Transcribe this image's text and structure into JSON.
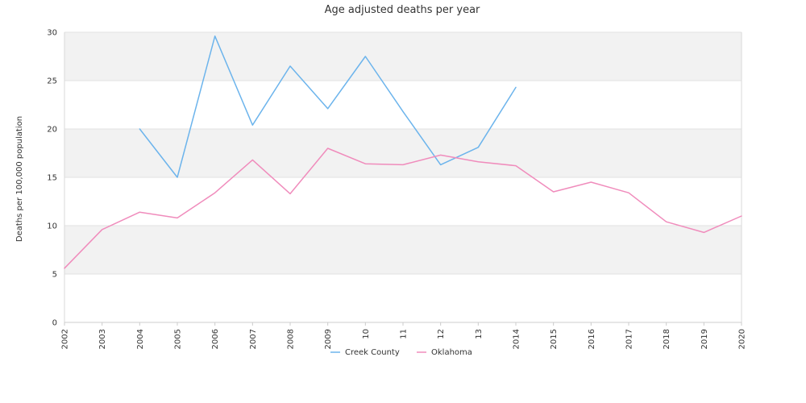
{
  "chart_data": {
    "type": "line",
    "title": "Age adjusted deaths per year",
    "ylabel": "Deaths per 100,000 population",
    "xlabel": "",
    "ylim": [
      0,
      30
    ],
    "yticks": [
      0,
      5,
      10,
      15,
      20,
      25,
      30
    ],
    "x": [
      "2002",
      "2003",
      "2004",
      "2005",
      "2006",
      "2007",
      "2008",
      "2009",
      "2010",
      "2011",
      "2012",
      "2013",
      "2014",
      "2015",
      "2016",
      "2017",
      "2018",
      "2019",
      "2020"
    ],
    "x_tick_labels": [
      "2002",
      "2003",
      "2004",
      "2005",
      "2006",
      "2007",
      "2008",
      "2009",
      "10",
      "11",
      "12",
      "13",
      "2014",
      "2015",
      "2016",
      "2017",
      "2018",
      "2019",
      "2020"
    ],
    "grid": "alternating horizontal bands",
    "legend_position": "bottom",
    "series": [
      {
        "name": "Creek County",
        "color": "#6cb4ec",
        "values": [
          null,
          null,
          20.0,
          15.0,
          29.6,
          20.4,
          26.5,
          22.1,
          27.5,
          21.8,
          16.3,
          18.1,
          24.3,
          null,
          null,
          null,
          null,
          null,
          null
        ]
      },
      {
        "name": "Oklahoma",
        "color": "#f08cbc",
        "values": [
          5.6,
          9.6,
          11.4,
          10.8,
          13.4,
          16.8,
          13.3,
          18.0,
          16.4,
          16.3,
          17.3,
          16.6,
          16.2,
          13.5,
          14.5,
          13.4,
          10.4,
          9.3,
          11.0
        ]
      }
    ]
  }
}
